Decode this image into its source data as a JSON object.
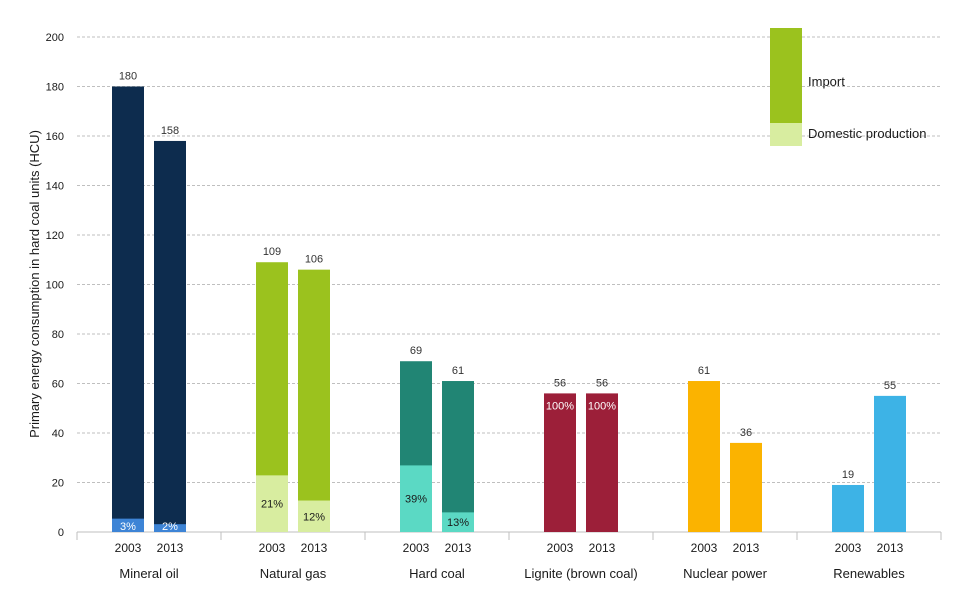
{
  "chart_data": {
    "type": "bar",
    "ylabel": "Primary energy consumption in hard coal units (HCU)",
    "ylim": [
      0,
      200
    ],
    "yticks": [
      0,
      20,
      40,
      60,
      80,
      100,
      120,
      140,
      160,
      180,
      200
    ],
    "grid": true,
    "legend": {
      "placement": "top-right",
      "entries": [
        {
          "name": "Import",
          "color": "#9bc21e"
        },
        {
          "name": "Domestic production",
          "color": "#d8eda0"
        }
      ]
    },
    "categories": [
      {
        "name": "Mineral oil",
        "bars": [
          {
            "year": "2003",
            "total": 180,
            "total_label": "180",
            "domestic_share": 3,
            "domestic_label": "3%",
            "color": "#0d2c4e",
            "domestic_color": "#3d84d6"
          },
          {
            "year": "2013",
            "total": 158,
            "total_label": "158",
            "domestic_share": 2,
            "domestic_label": "2%",
            "color": "#0d2c4e",
            "domestic_color": "#3d84d6"
          }
        ]
      },
      {
        "name": "Natural gas",
        "bars": [
          {
            "year": "2003",
            "total": 109,
            "total_label": "109",
            "domestic_share": 21,
            "domestic_label": "21%",
            "color": "#9bc21e",
            "domestic_color": "#d8eda0"
          },
          {
            "year": "2013",
            "total": 106,
            "total_label": "106",
            "domestic_share": 12,
            "domestic_label": "12%",
            "color": "#9bc21e",
            "domestic_color": "#d8eda0"
          }
        ]
      },
      {
        "name": "Hard coal",
        "bars": [
          {
            "year": "2003",
            "total": 69,
            "total_label": "69",
            "domestic_share": 39,
            "domestic_label": "39%",
            "color": "#218574",
            "domestic_color": "#5bd9c4"
          },
          {
            "year": "2013",
            "total": 61,
            "total_label": "61",
            "domestic_share": 13,
            "domestic_label": "13%",
            "color": "#218574",
            "domestic_color": "#5bd9c4"
          }
        ]
      },
      {
        "name": "Lignite (brown coal)",
        "bars": [
          {
            "year": "2003",
            "total": 56,
            "total_label": "56",
            "domestic_share": 100,
            "domestic_label": "100%",
            "color": "#9c1f39",
            "domestic_color": "#9c1f39"
          },
          {
            "year": "2013",
            "total": 56,
            "total_label": "56",
            "domestic_share": 100,
            "domestic_label": "100%",
            "color": "#9c1f39",
            "domestic_color": "#9c1f39"
          }
        ]
      },
      {
        "name": "Nuclear power",
        "bars": [
          {
            "year": "2003",
            "total": 61,
            "total_label": "61",
            "domestic_share": 0,
            "domestic_label": "",
            "color": "#fbb300",
            "domestic_color": "#fbb300"
          },
          {
            "year": "2013",
            "total": 36,
            "total_label": "36",
            "domestic_share": 0,
            "domestic_label": "",
            "color": "#fbb300",
            "domestic_color": "#fbb300"
          }
        ]
      },
      {
        "name": "Renewables",
        "bars": [
          {
            "year": "2003",
            "total": 19,
            "total_label": "19",
            "domestic_share": 0,
            "domestic_label": "",
            "color": "#3db3e6",
            "domestic_color": "#3db3e6"
          },
          {
            "year": "2013",
            "total": 55,
            "total_label": "55",
            "domestic_share": 0,
            "domestic_label": "",
            "color": "#3db3e6",
            "domestic_color": "#3db3e6"
          }
        ]
      }
    ]
  }
}
